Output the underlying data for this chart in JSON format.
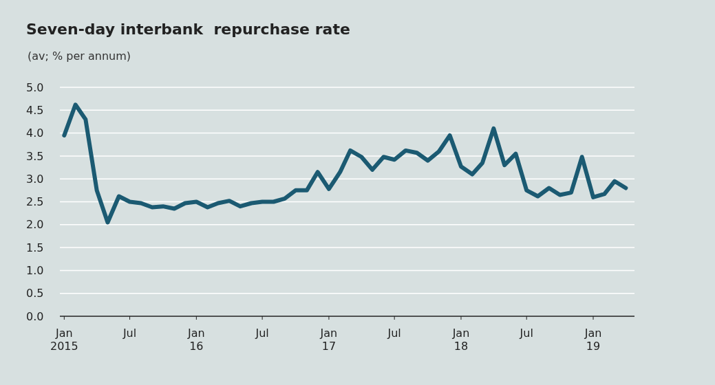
{
  "chart_data": {
    "type": "line",
    "title": "Seven-day interbank  repurchase rate",
    "subtitle": "(av; % per annum)",
    "x": [
      "2015-01",
      "2015-02",
      "2015-03",
      "2015-04",
      "2015-05",
      "2015-06",
      "2015-07",
      "2015-08",
      "2015-09",
      "2015-10",
      "2015-11",
      "2015-12",
      "2016-01",
      "2016-02",
      "2016-03",
      "2016-04",
      "2016-05",
      "2016-06",
      "2016-07",
      "2016-08",
      "2016-09",
      "2016-10",
      "2016-11",
      "2016-12",
      "2017-01",
      "2017-02",
      "2017-03",
      "2017-04",
      "2017-05",
      "2017-06",
      "2017-07",
      "2017-08",
      "2017-09",
      "2017-10",
      "2017-11",
      "2017-12",
      "2018-01",
      "2018-02",
      "2018-03",
      "2018-04",
      "2018-05",
      "2018-06",
      "2018-07",
      "2018-08",
      "2018-09",
      "2018-10",
      "2018-11",
      "2018-12",
      "2019-01",
      "2019-02",
      "2019-03",
      "2019-04"
    ],
    "series": [
      {
        "color": "#1b5a72",
        "values": [
          3.95,
          4.62,
          4.3,
          2.75,
          2.05,
          2.62,
          2.5,
          2.47,
          2.38,
          2.4,
          2.35,
          2.47,
          2.5,
          2.38,
          2.47,
          2.52,
          2.4,
          2.47,
          2.5,
          2.5,
          2.57,
          2.75,
          2.75,
          3.15,
          2.78,
          3.15,
          3.62,
          3.48,
          3.2,
          3.48,
          3.42,
          3.62,
          3.57,
          3.4,
          3.6,
          3.95,
          3.27,
          3.1,
          3.35,
          4.1,
          3.3,
          3.55,
          2.75,
          2.62,
          2.8,
          2.65,
          2.7,
          3.48,
          2.6,
          2.67,
          2.95,
          2.8
        ]
      }
    ],
    "xlim": [
      "2014-12-20",
      "2019-04-25"
    ],
    "xticks": [
      {
        "value": "2015-01",
        "label": "Jan\n2015"
      },
      {
        "value": "2015-07",
        "label": "Jul"
      },
      {
        "value": "2016-01",
        "label": "Jan\n16"
      },
      {
        "value": "2016-07",
        "label": "Jul"
      },
      {
        "value": "2017-01",
        "label": "Jan\n17"
      },
      {
        "value": "2017-07",
        "label": "Jul"
      },
      {
        "value": "2018-01",
        "label": "Jan\n18"
      },
      {
        "value": "2018-07",
        "label": "Jul"
      },
      {
        "value": "2019-01",
        "label": "Jan\n19"
      }
    ],
    "ylim": [
      0,
      5
    ],
    "yticks": [
      {
        "value": 0,
        "label": "0.0"
      },
      {
        "value": 0.5,
        "label": "0.5"
      },
      {
        "value": 1,
        "label": "1.0"
      },
      {
        "value": 1.5,
        "label": "1.5"
      },
      {
        "value": 2,
        "label": "2.0"
      },
      {
        "value": 2.5,
        "label": "2.5"
      },
      {
        "value": 3,
        "label": "3.0"
      },
      {
        "value": 3.5,
        "label": "3.5"
      },
      {
        "value": 4,
        "label": "4.0"
      },
      {
        "value": 4.5,
        "label": "4.5"
      },
      {
        "value": 5,
        "label": "5.0"
      }
    ],
    "grid": "y",
    "line_style": "solid"
  }
}
